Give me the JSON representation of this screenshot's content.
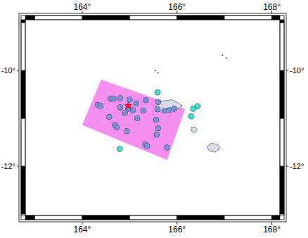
{
  "chart_data": {
    "type": "map",
    "xlim": [
      162.8,
      168.17
    ],
    "ylim": [
      -13.03,
      -8.94
    ],
    "xticks": [
      {
        "value": 164,
        "label": "164°"
      },
      {
        "value": 166,
        "label": "166°"
      },
      {
        "value": 168,
        "label": "168°"
      }
    ],
    "yticks": [
      {
        "value": -10,
        "label": "-10°"
      },
      {
        "value": -12,
        "label": "-12°"
      }
    ],
    "land": {
      "color": "#d9dcea",
      "polygons": [
        {
          "lon": [
            165.54,
            165.69,
            165.89,
            166.03,
            166.11,
            166.03,
            165.86,
            165.71,
            165.57
          ],
          "lat": [
            -10.74,
            -10.64,
            -10.61,
            -10.68,
            -10.74,
            -10.8,
            -10.78,
            -10.84,
            -10.83
          ]
        },
        {
          "lon": [
            166.3,
            166.38,
            166.43,
            166.37,
            166.3
          ],
          "lat": [
            -11.2,
            -11.18,
            -11.24,
            -11.3,
            -11.26
          ]
        },
        {
          "lon": [
            166.63,
            166.72,
            166.86,
            166.91,
            166.8,
            166.68
          ],
          "lat": [
            -11.6,
            -11.52,
            -11.55,
            -11.62,
            -11.71,
            -11.68
          ]
        }
      ]
    },
    "islets": {
      "color": "#555555",
      "lon": [
        166.96,
        167.04,
        165.54,
        165.6
      ],
      "lat": [
        -9.68,
        -9.74,
        -10.0,
        -10.05
      ]
    },
    "region": {
      "color": "#f590f0",
      "lon": [
        164.4,
        166.17,
        165.79,
        164.0
      ],
      "lat": [
        -10.19,
        -10.81,
        -11.87,
        -11.14
      ]
    },
    "series": [
      {
        "type": "scatter",
        "marker": "circle",
        "color": "#7f8fd0",
        "x": [
          164.33,
          164.39,
          164.6,
          164.8,
          165.0,
          164.8,
          164.9,
          165.07,
          165.29,
          165.34,
          165.6,
          165.59,
          165.74,
          165.84,
          165.94,
          164.57,
          164.69,
          164.73,
          165.16,
          165.56,
          165.6,
          165.57,
          165.33,
          165.37,
          165.79,
          164.94,
          164.66,
          165.14,
          164.97
        ],
        "values": [
          -10.72,
          -10.74,
          -10.59,
          -10.58,
          -10.61,
          -10.77,
          -10.89,
          -10.83,
          -10.84,
          -10.62,
          -10.66,
          -10.81,
          -10.84,
          -10.83,
          -10.8,
          -10.97,
          -11.14,
          -11.19,
          -11.0,
          -11.03,
          -11.21,
          -11.34,
          -11.55,
          -11.58,
          -11.61,
          -11.27,
          -10.59,
          -10.69,
          -10.8
        ]
      },
      {
        "type": "scatter",
        "marker": "circle",
        "color": "#3ee0be",
        "x": [
          165.59,
          166.34,
          166.43,
          166.3,
          164.79
        ],
        "values": [
          -10.46,
          -10.8,
          -10.75,
          -10.96,
          -11.64
        ]
      }
    ],
    "epicenter": {
      "marker": "star",
      "color": "#e8213b",
      "lon": [
        164.97
      ],
      "lat": [
        -10.74
      ]
    }
  }
}
